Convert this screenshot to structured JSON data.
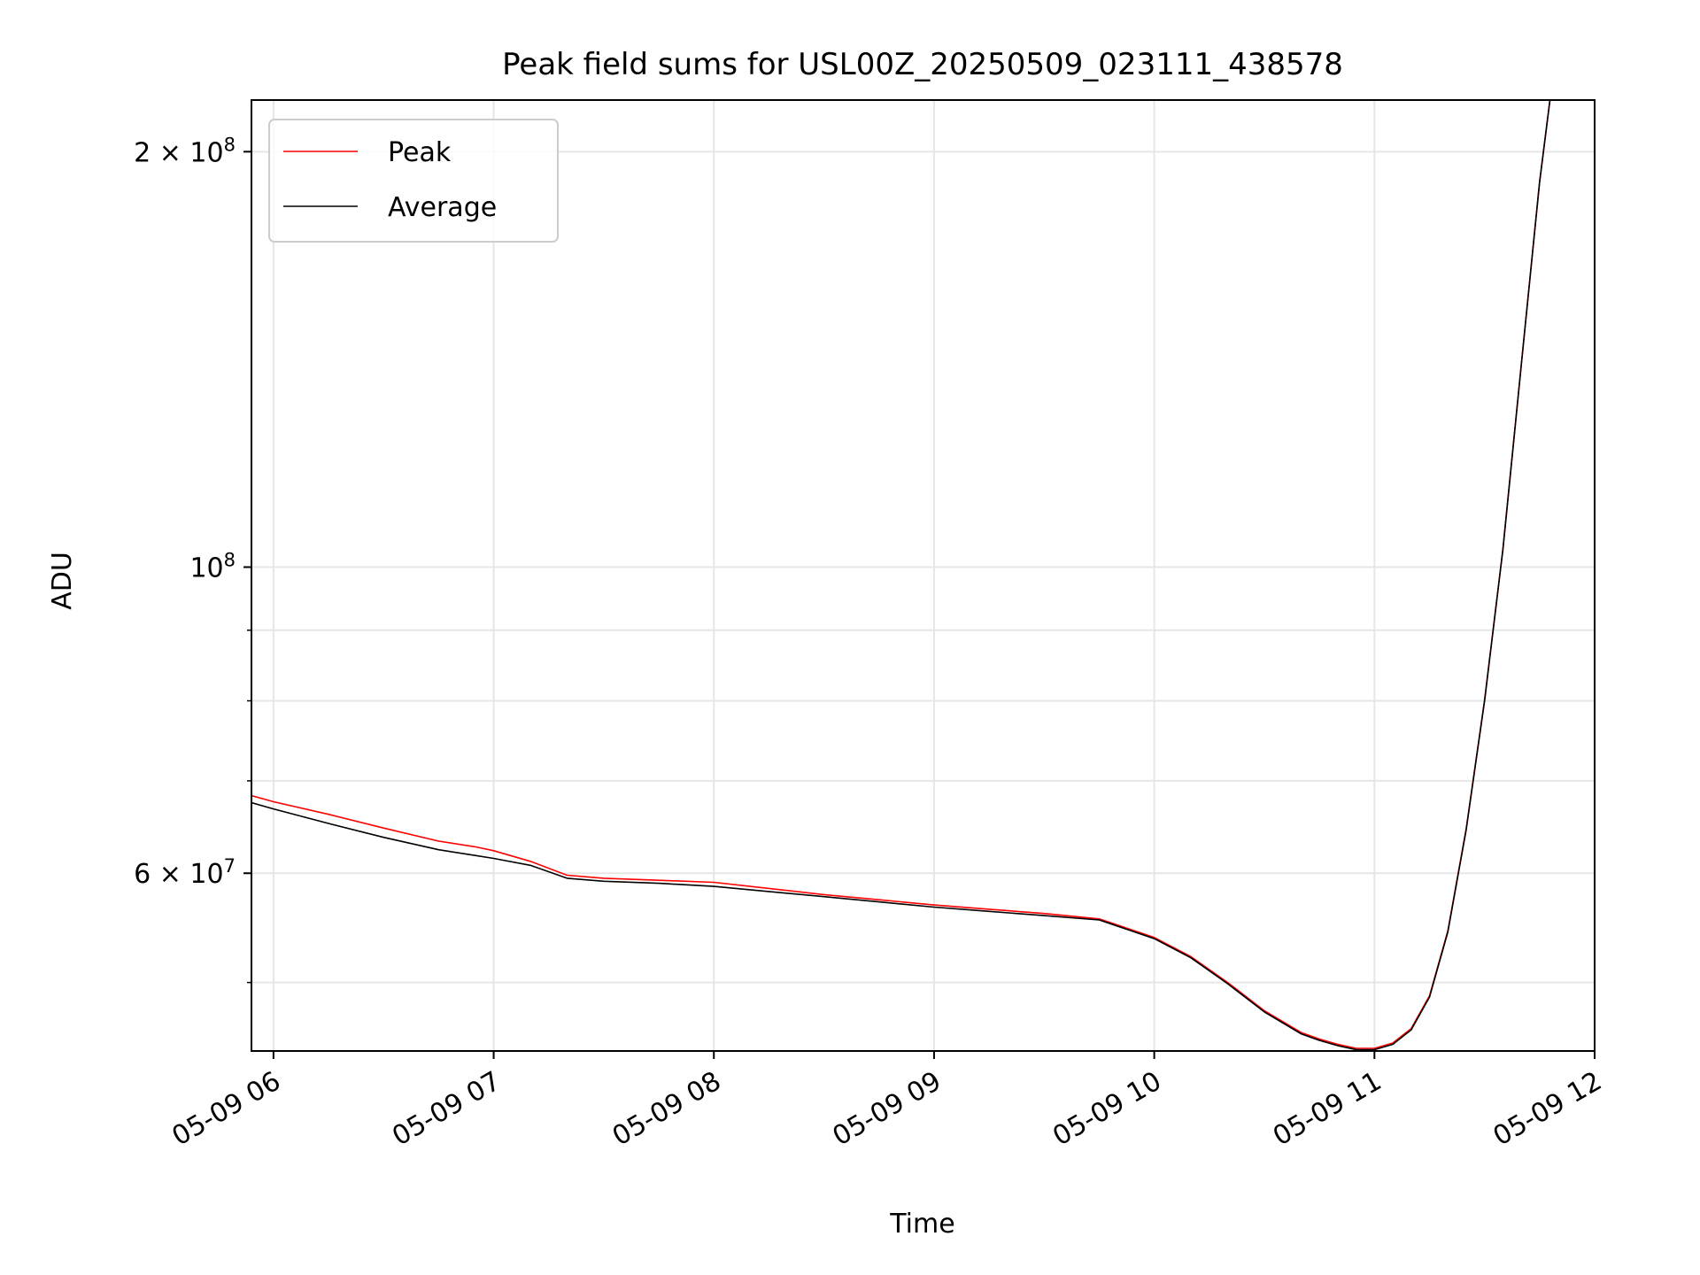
{
  "chart_data": {
    "type": "line",
    "title": "Peak field sums for USL00Z_20250509_023111_438578",
    "xlabel": "Time",
    "ylabel": "ADU",
    "x_ticks": [
      "05-09 06",
      "05-09 07",
      "05-09 08",
      "05-09 09",
      "05-09 10",
      "05-09 11",
      "05-09 12"
    ],
    "xlim": [
      "2025-05-09 05:54",
      "2025-05-09 12:00"
    ],
    "y_scale": "log",
    "ylim": [
      44600000,
      218000000
    ],
    "y_major_ticks": [
      {
        "value": 60000000,
        "mant": "6",
        "exp": "7"
      },
      {
        "value": 100000000,
        "mant": "",
        "exp": "8"
      },
      {
        "value": 200000000,
        "mant": "2",
        "exp": "8"
      }
    ],
    "y_minor_ticks": [
      50000000,
      70000000,
      80000000,
      90000000
    ],
    "grid": true,
    "legend": {
      "placement": "top-left",
      "entries": [
        "Peak",
        "Average"
      ]
    },
    "colors": {
      "peak": "#ff0000",
      "average": "#000000",
      "grid": "#e6e6e6"
    },
    "series": [
      {
        "name": "Average",
        "color": "#000000",
        "x": [
          "05:54",
          "06:00",
          "06:15",
          "06:30",
          "06:45",
          "06:55",
          "07:00",
          "07:10",
          "07:20",
          "07:30",
          "07:45",
          "08:00",
          "08:15",
          "08:30",
          "08:45",
          "09:00",
          "09:15",
          "09:30",
          "09:45",
          "10:00",
          "10:10",
          "10:20",
          "10:30",
          "10:40",
          "10:45",
          "10:50",
          "10:55",
          "11:00",
          "11:05",
          "11:10",
          "11:15",
          "11:20",
          "11:25",
          "11:30",
          "11:35",
          "11:40",
          "11:45",
          "11:48"
        ],
        "y": [
          67500000,
          66800000,
          65200000,
          63700000,
          62400000,
          61800000,
          61500000,
          60800000,
          59500000,
          59200000,
          59000000,
          58700000,
          58200000,
          57700000,
          57200000,
          56700000,
          56300000,
          55900000,
          55500000,
          53800000,
          52100000,
          49900000,
          47600000,
          45900000,
          45400000,
          45000000,
          44700000,
          44700000,
          45100000,
          46200000,
          48800000,
          54400000,
          64500000,
          80000000,
          103000000,
          140000000,
          190000000,
          220000000
        ]
      },
      {
        "name": "Peak",
        "color": "#ff0000",
        "x": [
          "05:54",
          "06:00",
          "06:15",
          "06:30",
          "06:45",
          "06:55",
          "07:00",
          "07:10",
          "07:20",
          "07:30",
          "07:45",
          "08:00",
          "08:15",
          "08:30",
          "08:45",
          "09:00",
          "09:15",
          "09:30",
          "09:45",
          "10:00",
          "10:10",
          "10:20",
          "10:30",
          "10:40",
          "10:45",
          "10:50",
          "10:55",
          "11:00",
          "11:05",
          "11:10",
          "11:15",
          "11:20",
          "11:25",
          "11:30",
          "11:35",
          "11:40",
          "11:45",
          "11:48"
        ],
        "y": [
          68300000,
          67600000,
          66200000,
          64700000,
          63300000,
          62700000,
          62300000,
          61200000,
          59800000,
          59500000,
          59300000,
          59100000,
          58500000,
          57900000,
          57400000,
          56900000,
          56500000,
          56100000,
          55600000,
          53900000,
          52200000,
          50000000,
          47700000,
          46000000,
          45500000,
          45100000,
          44800000,
          44800000,
          45200000,
          46300000,
          48900000,
          54500000,
          64600000,
          80100000,
          103000000,
          140000000,
          190000000,
          220000000
        ]
      }
    ]
  }
}
